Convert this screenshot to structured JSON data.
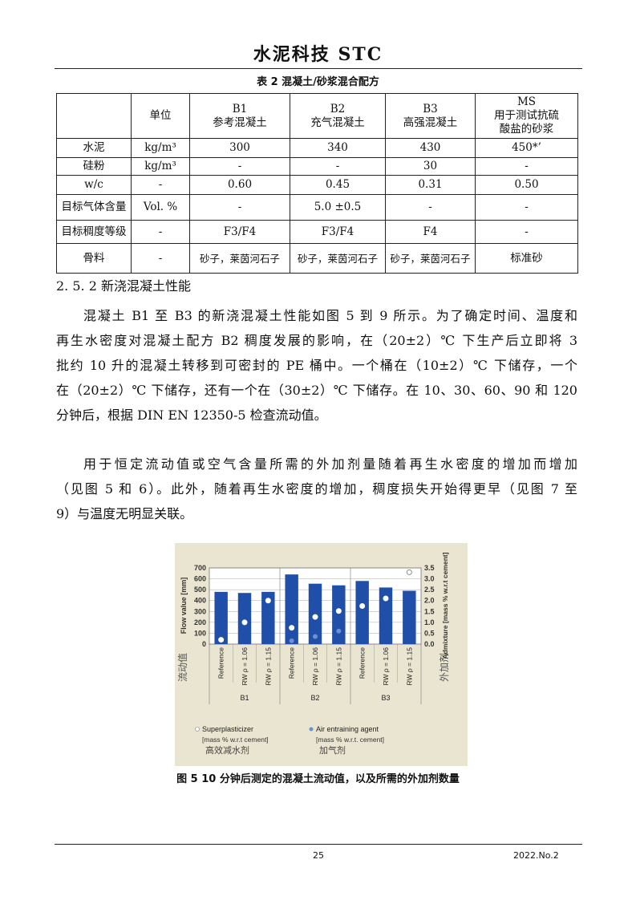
{
  "header": {
    "title": "水泥科技  STC"
  },
  "table": {
    "caption": "表 2 混凝土/砂浆混合配方",
    "header": [
      "",
      "单位",
      "B1\n参考混凝土",
      "B2\n充气混凝土",
      "B3\n高强混凝土",
      "MS\n用于测试抗硫\n酸盐的砂浆"
    ],
    "rows": [
      [
        "水泥",
        "kg/m³",
        "300",
        "340",
        "430",
        "450*’"
      ],
      [
        "硅粉",
        "kg/m³",
        "-",
        "-",
        "30",
        "-"
      ],
      [
        "w/c",
        "-",
        "0.60",
        "0.45",
        "0.31",
        "0.50"
      ],
      [
        "目标气体含量",
        "Vol. %",
        "-",
        "5.0 ±0.5",
        "-",
        "-"
      ],
      [
        "目标稠度等级",
        "-",
        "F3/F4",
        "F3/F4",
        "F4",
        "-"
      ],
      [
        "骨料",
        "-",
        "砂子，莱茵河石子",
        "砂子，莱茵河石子",
        "砂子，莱茵河石子",
        "标准砂"
      ]
    ]
  },
  "section": {
    "heading": "2. 5. 2  新浇混凝土性能"
  },
  "paragraphs": [
    [
      "混凝土 B1 至 B3 的新浇混凝土性能如图 5 到 9 所示。为了确定时间、温度和",
      "再生水密度对混凝土配方 B2 稠度发展的影响，在（20±2）℃ 下生产后立即将 3",
      "批约 10 升的混凝土转移到可密封的 PE 桶中。一个桶在（10±2）℃ 下储存，一个",
      "在（20±2）℃ 下储存，还有一个在（30±2）℃ 下储存。在 10、30、60、90 和 120",
      "分钟后，根据 DIN EN 12350-5 检查流动值。"
    ],
    [
      "用于恒定流动值或空气含量所需的外加剂量随着再生水密度的增加而增加",
      "（见图 5 和 6）。此外，随着再生水密度的增加，稠度损失开始得更早（见图 7 至",
      "9）与温度无明显关联。"
    ]
  ],
  "chart_data": {
    "type": "bar",
    "groups": [
      "B1",
      "B2",
      "B3"
    ],
    "categories": [
      "Reference",
      "RW ρ = 1.06",
      "RW ρ = 1.15",
      "Reference",
      "RW ρ = 1.06",
      "RW ρ = 1.15",
      "Reference",
      "RW ρ = 1.06",
      "RW ρ = 1.15"
    ],
    "ylabel": "Flow value [mm]",
    "ylabel_cn": "流动值",
    "y2label": "Admixture [mass % w.r.t cement]",
    "y2label_cn": "外加剂",
    "ylim": [
      0,
      700
    ],
    "yticks": [
      "0",
      "100",
      "200",
      "300",
      "400",
      "500",
      "600",
      "700"
    ],
    "y2lim": [
      0,
      3.5
    ],
    "y2ticks": [
      "0.0",
      "0.5",
      "1.0",
      "1.5",
      "2.0",
      "2.5",
      "3.0",
      "3.5"
    ],
    "bar_color": "#1f4fa8",
    "series": [
      {
        "name": "Flow value",
        "axis": "left",
        "values": [
          480,
          470,
          480,
          640,
          555,
          540,
          580,
          520,
          490
        ]
      },
      {
        "name": "Superplasticizer",
        "axis": "right",
        "color": "#ffffff",
        "values": [
          0.2,
          1.0,
          2.0,
          0.75,
          1.25,
          1.52,
          1.75,
          2.1,
          3.3
        ]
      },
      {
        "name": "Air entraining agent",
        "axis": "right",
        "color": "#6f8fd0",
        "values": [
          null,
          null,
          null,
          0.15,
          0.35,
          0.6,
          null,
          null,
          null
        ]
      }
    ],
    "legend": [
      {
        "label": "Superplasticizer",
        "sub": "[mass % w.r.t cement]",
        "cn": "高效减水剂"
      },
      {
        "label": "Air entraining agent",
        "sub": "[mass % w.r.t. cement]",
        "cn": "加气剂"
      }
    ],
    "grid": true
  },
  "figure": {
    "caption": "图 5    10 分钟后测定的混凝土流动值，以及所需的外加剂数量"
  },
  "footer": {
    "page": "25",
    "issue": "2022.No.2"
  }
}
